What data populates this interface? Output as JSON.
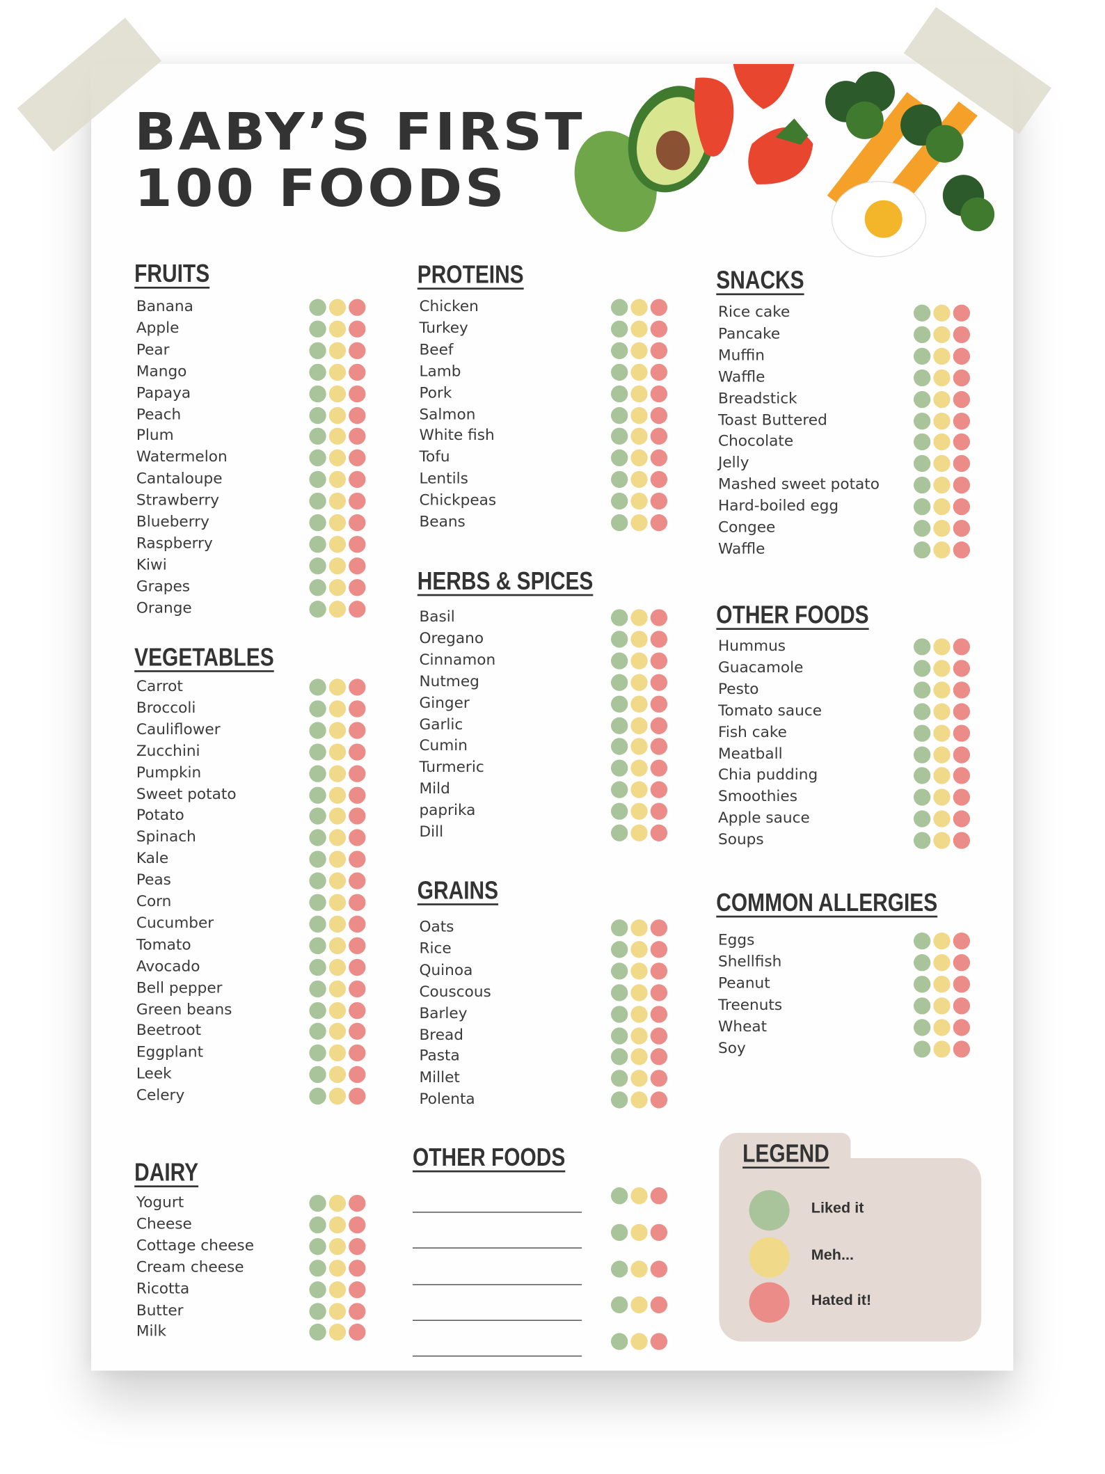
{
  "title": {
    "line1": "BABY’S FIRST",
    "line2": "100 FOODS"
  },
  "sections": [
    {
      "heading": "FRUITS",
      "items": [
        "Banana",
        "Apple",
        "Pear",
        "Mango",
        "Papaya",
        "Peach",
        "Plum",
        "Watermelon",
        "Cantaloupe",
        "Strawberry",
        "Blueberry",
        "Raspberry",
        "Kiwi",
        "Grapes",
        "Orange"
      ]
    },
    {
      "heading": "VEGETABLES",
      "items": [
        "Carrot",
        "Broccoli",
        "Cauliflower",
        "Zucchini",
        "Pumpkin",
        "Sweet potato",
        "Potato",
        "Spinach",
        "Kale",
        "Peas",
        "Corn",
        "Cucumber",
        "Tomato",
        "Avocado",
        "Bell pepper",
        "Green beans",
        "Beetroot",
        "Eggplant",
        "Leek",
        "Celery"
      ]
    },
    {
      "heading": "DAIRY",
      "items": [
        "Yogurt",
        "Cheese",
        "Cottage cheese",
        "Cream cheese",
        "Ricotta",
        "Butter",
        "Milk"
      ]
    },
    {
      "heading": "PROTEINS",
      "items": [
        "Chicken",
        "Turkey",
        "Beef",
        "Lamb",
        "Pork",
        "Salmon",
        "White fish",
        "Tofu",
        "Lentils",
        "Chickpeas",
        "Beans"
      ]
    },
    {
      "heading": "HERBS & SPICES",
      "items": [
        "Basil",
        "Oregano",
        "Cinnamon",
        "Nutmeg",
        "Ginger",
        "Garlic",
        "Cumin",
        "Turmeric",
        "Mild",
        "paprika",
        "Dill"
      ]
    },
    {
      "heading": "GRAINS",
      "items": [
        "Oats",
        "Rice",
        "Quinoa",
        "Couscous",
        "Barley",
        "Bread",
        "Pasta",
        "Millet",
        "Polenta"
      ]
    },
    {
      "heading": "SNACKS",
      "items": [
        "Rice cake",
        "Pancake",
        "Muffin",
        "Waffle",
        "Breadstick",
        "Toast Buttered",
        "Chocolate",
        "Jelly",
        "Mashed sweet potato",
        "Hard-boiled egg",
        "Congee",
        "Waffle"
      ]
    },
    {
      "heading": "OTHER FOODS",
      "items": [
        "Hummus",
        "Guacamole",
        "Pesto",
        "Tomato sauce",
        "Fish cake",
        "Meatball",
        "Chia pudding",
        "Smoothies",
        "Apple sauce",
        "Soups"
      ]
    },
    {
      "heading": "COMMON ALLERGIES",
      "items": [
        "Eggs",
        "Shellfish",
        "Peanut",
        "Treenuts",
        "Wheat",
        "Soy"
      ]
    }
  ],
  "blank_section": {
    "heading": "OTHER FOODS"
  },
  "legend": {
    "title": "LEGEND",
    "entries": [
      "Liked it",
      "Meh...",
      "Hated it!"
    ]
  }
}
